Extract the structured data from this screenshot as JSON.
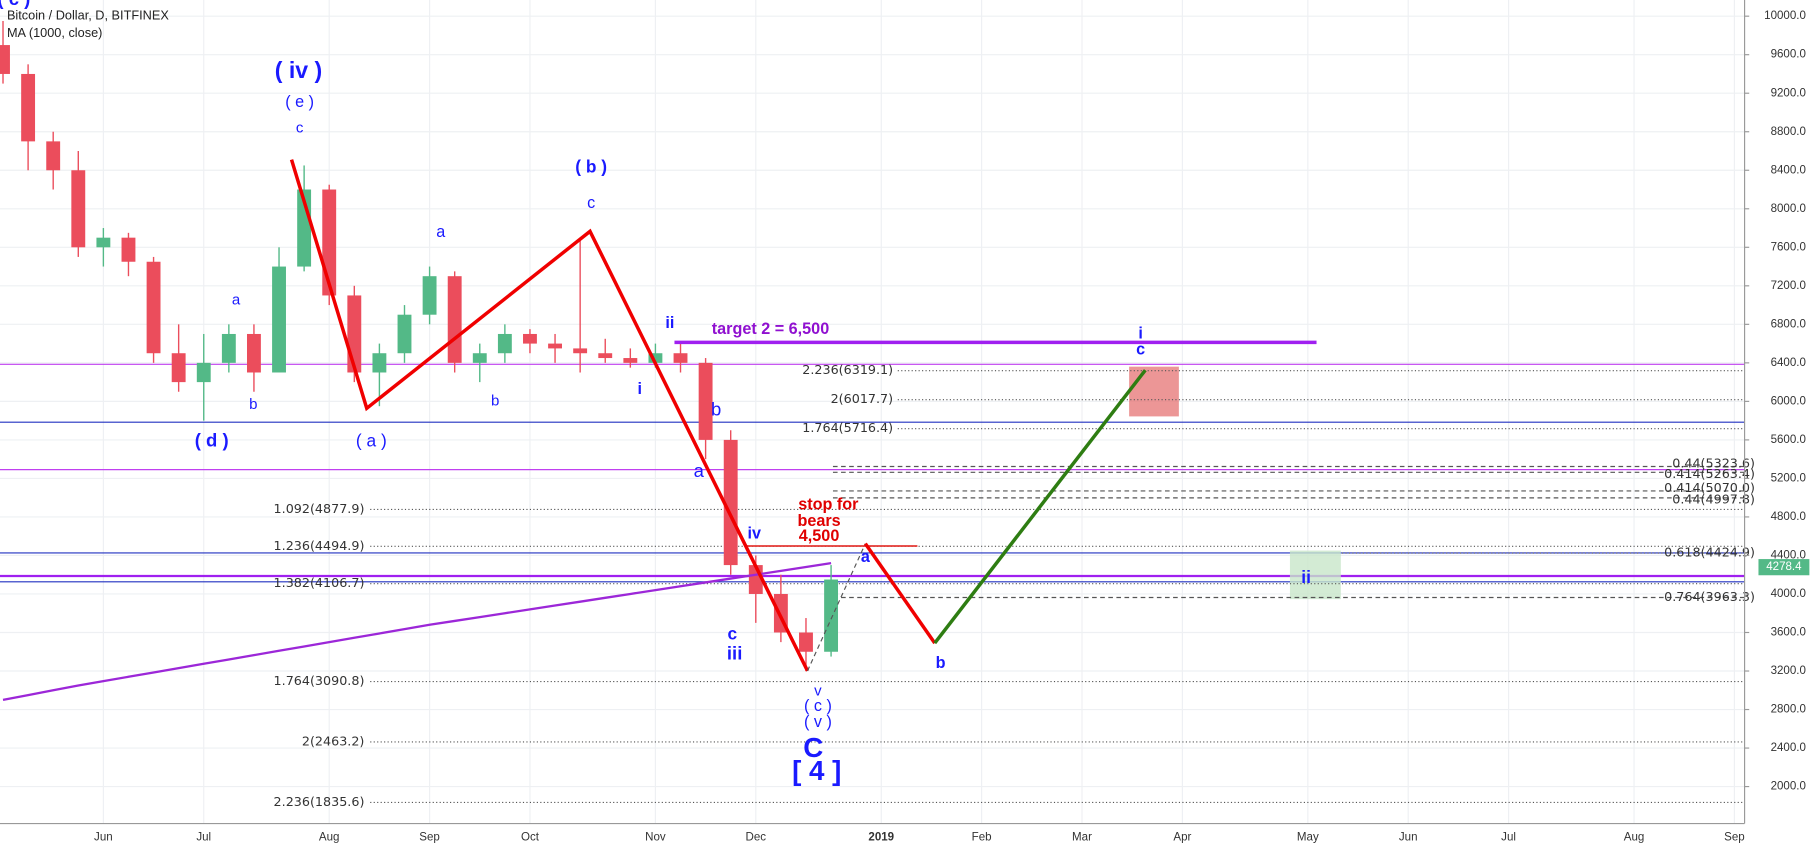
{
  "chart_data": {
    "type": "candlestick",
    "title": "Bitcoin / Dollar, D, BITFINEX",
    "categories": [
      null,
      null,
      null,
      null,
      "Jun",
      null,
      null,
      null,
      "Jul",
      null,
      null,
      null,
      null,
      "Aug",
      null,
      null,
      null,
      "Sep",
      null,
      null,
      null,
      "Oct",
      null,
      null,
      null,
      null,
      "Nov",
      null,
      null,
      null,
      "Dec",
      null,
      null,
      null,
      null,
      "2019",
      null,
      null,
      null,
      "Feb",
      null,
      null,
      null,
      "Mar",
      null,
      null,
      null,
      "Apr",
      null,
      null,
      null,
      null,
      "May",
      null,
      null,
      null,
      "Jun",
      null,
      null,
      null,
      "Jul",
      null,
      null,
      null,
      null,
      "Aug",
      null,
      null,
      null,
      "Sep"
    ],
    "candles": {
      "up_color": "#53b987",
      "down_color": "#eb4d5c",
      "open": [
        9700,
        9400,
        8700,
        8400,
        7600,
        7700,
        7450,
        6500,
        6200,
        6400,
        6700,
        6300,
        7400,
        8200,
        7100,
        6300,
        6500,
        6900,
        7300,
        6400,
        6500,
        6700,
        6600,
        6550,
        6500,
        6450,
        6400,
        6500,
        6400,
        5600,
        4300,
        4000,
        3600,
        3400,
        null,
        null,
        null,
        null,
        null,
        null,
        null,
        null,
        null,
        null,
        null,
        null,
        null,
        null,
        null,
        null,
        null,
        null,
        null,
        null,
        null,
        null,
        null,
        null,
        null,
        null,
        null,
        null,
        null,
        null,
        null,
        null,
        null,
        null,
        null,
        null
      ],
      "high": [
        9950,
        9500,
        8800,
        8600,
        7800,
        7750,
        7500,
        6800,
        6700,
        6800,
        6800,
        7600,
        8450,
        8250,
        7200,
        6600,
        7000,
        7400,
        7350,
        6600,
        6800,
        6750,
        6700,
        7700,
        6650,
        6550,
        6600,
        6600,
        6450,
        5700,
        4400,
        4200,
        3750,
        4300,
        null,
        null,
        null,
        null,
        null,
        null,
        null,
        null,
        null,
        null,
        null,
        null,
        null,
        null,
        null,
        null,
        null,
        null,
        null,
        null,
        null,
        null,
        null,
        null,
        null,
        null,
        null,
        null,
        null,
        null,
        null,
        null,
        null,
        null,
        null,
        null
      ],
      "low": [
        9300,
        8400,
        8200,
        7500,
        7400,
        7300,
        6400,
        6100,
        5800,
        6300,
        6100,
        6300,
        7350,
        7000,
        6200,
        5950,
        6400,
        6800,
        6300,
        6200,
        6400,
        6500,
        6400,
        6300,
        6400,
        6350,
        6350,
        6300,
        5400,
        4200,
        3700,
        3500,
        3200,
        3350,
        null,
        null,
        null,
        null,
        null,
        null,
        null,
        null,
        null,
        null,
        null,
        null,
        null,
        null,
        null,
        null,
        null,
        null,
        null,
        null,
        null,
        null,
        null,
        null,
        null,
        null,
        null,
        null,
        null,
        null,
        null,
        null,
        null,
        null,
        null,
        null
      ],
      "close": [
        9400,
        8700,
        8400,
        7600,
        7700,
        7450,
        6500,
        6200,
        6400,
        6700,
        6300,
        7400,
        8200,
        7100,
        6300,
        6500,
        6900,
        7300,
        6400,
        6500,
        6700,
        6600,
        6550,
        6500,
        6450,
        6400,
        6500,
        6400,
        5600,
        4300,
        4000,
        3600,
        3400,
        4150,
        null,
        null,
        null,
        null,
        null,
        null,
        null,
        null,
        null,
        null,
        null,
        null,
        null,
        null,
        null,
        null,
        null,
        null,
        null,
        null,
        null,
        null,
        null,
        null,
        null,
        null,
        null,
        null,
        null,
        null,
        null,
        null,
        null,
        null,
        null,
        null
      ]
    },
    "ma": {
      "name": "MA (1000, close)",
      "color": "#9c27d8",
      "values": [
        2900,
        2950,
        3000,
        3050,
        3095,
        3140,
        3185,
        3230,
        3275,
        3320,
        3365,
        3410,
        3455,
        3500,
        3545,
        3590,
        3635,
        3680,
        3720,
        3760,
        3800,
        3840,
        3880,
        3920,
        3960,
        4000,
        4040,
        4080,
        4120,
        4160,
        4200,
        4240,
        4280,
        4320,
        null,
        null,
        null,
        null,
        null,
        null,
        null,
        null,
        null,
        null,
        null,
        null,
        null,
        null,
        null,
        null,
        null,
        null,
        null,
        null,
        null,
        null,
        null,
        null,
        null,
        null,
        null,
        null,
        null,
        null,
        null,
        null,
        null,
        null,
        null,
        null
      ]
    },
    "last_price": 4278.4,
    "ylim": [
      1616,
      10168
    ],
    "yticks": [
      {
        "value": 2000,
        "label": "2000.0"
      },
      {
        "value": 2400,
        "label": "2400.0"
      },
      {
        "value": 2800,
        "label": "2800.0"
      },
      {
        "value": 3200,
        "label": "3200.0"
      },
      {
        "value": 3600,
        "label": "3600.0"
      },
      {
        "value": 4000,
        "label": "4000.0"
      },
      {
        "value": 4400,
        "label": "4400.0"
      },
      {
        "value": 4800,
        "label": "4800.0"
      },
      {
        "value": 5200,
        "label": "5200.0"
      },
      {
        "value": 5600,
        "label": "5600.0"
      },
      {
        "value": 6000,
        "label": "6000.0"
      },
      {
        "value": 6400,
        "label": "6400.0"
      },
      {
        "value": 6800,
        "label": "6800.0"
      },
      {
        "value": 7200,
        "label": "7200.0"
      },
      {
        "value": 7600,
        "label": "7600.0"
      },
      {
        "value": 8000,
        "label": "8000.0"
      },
      {
        "value": 8400,
        "label": "8400.0"
      },
      {
        "value": 8800,
        "label": "8800.0"
      },
      {
        "value": 9200,
        "label": "9200.0"
      },
      {
        "value": 9600,
        "label": "9600.0"
      },
      {
        "value": 10000,
        "label": "10000.0"
      }
    ],
    "grid": true,
    "levels": [
      {
        "label": "1.092(4877.9)",
        "value": 4877.9
      },
      {
        "label": "1.236(4494.9)",
        "value": 4494.9
      },
      {
        "label": "1.382(4106.7)",
        "value": 4106.7
      },
      {
        "label": "1.764(3090.8)",
        "value": 3090.8
      },
      {
        "label": "2(2463.2)",
        "value": 2463.2
      },
      {
        "label": "2.236(1835.6)",
        "value": 1835.6
      },
      {
        "label": "2.236(6319.1)",
        "value": 6319.1
      },
      {
        "label": "2(6017.7)",
        "value": 6017.7
      },
      {
        "label": "1.764(5716.4)",
        "value": 5716.4
      },
      {
        "label": "0.44(5323.6)",
        "value": 5323.6
      },
      {
        "label": "0.414(5263.4)",
        "value": 5263.4
      },
      {
        "label": "0.414(5070.0)",
        "value": 5070.0
      },
      {
        "label": "0.44(4997.8)",
        "value": 4997.8
      },
      {
        "label": "0.618(4424.9)",
        "value": 4424.9
      },
      {
        "label": "0.764(3963.3)",
        "value": 3963.3
      }
    ],
    "annotations": [
      "( c )",
      "( iv )",
      "( e )",
      "c",
      "a",
      "b",
      "( d )",
      "( a )",
      "a",
      "b",
      "( b )",
      "c",
      "i",
      "ii",
      "b",
      "a",
      "iv",
      "c",
      "iii",
      "v",
      "( c )",
      "( v )",
      "C",
      "[ 4 ]",
      "stop for",
      "bears",
      "4,500",
      "target 2 = 6,500",
      "a",
      "b",
      "i",
      "c",
      "ii"
    ]
  }
}
